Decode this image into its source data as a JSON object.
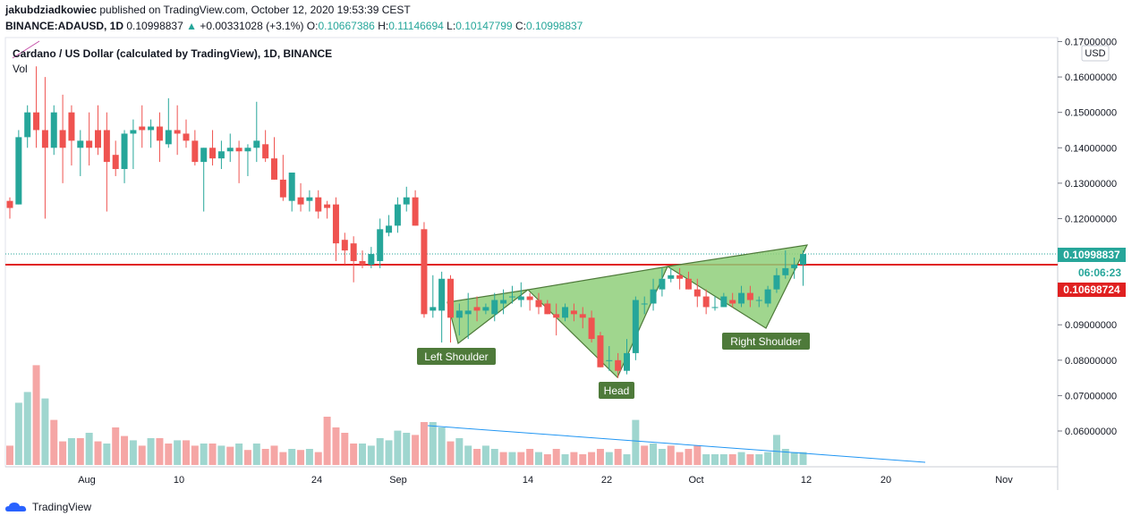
{
  "header": {
    "author": "jakubdziadkowiec",
    "published_text": "published on TradingView.com, October 12, 2020 19:53:39 CEST",
    "symbol": "BINANCE:ADAUSD, 1D",
    "last": "0.10998837",
    "change": "+0.00331028 (+3.1%)",
    "open_label": "O:",
    "open": "0.10667386",
    "high_label": "H:",
    "high": "0.11146694",
    "low_label": "L:",
    "low": "0.10147799",
    "close_label": "C:",
    "close": "0.10998837"
  },
  "chart_title": "Cardano / US Dollar (calculated by TradingView), 1D, BINANCE",
  "vol_label": "Vol",
  "currency_badge": "USD",
  "price_tags": {
    "last": "0.10998837",
    "countdown": "06:06:23",
    "support": "0.10698724"
  },
  "footer_brand": "TradingView",
  "colors": {
    "up": "#26a69a",
    "down": "#ef5350",
    "support_line": "#e02020",
    "pattern_fill": "#8fcf7a",
    "pattern_stroke": "#4e7a3a",
    "label_bg": "#4e7a3a",
    "trend_line": "#2196f3"
  },
  "chart_data": {
    "type": "candlestick",
    "ylim": [
      0.05,
      0.17
    ],
    "y_ticks": [
      "0.17000000",
      "0.16000000",
      "0.15000000",
      "0.14000000",
      "0.13000000",
      "0.12000000",
      "0.11000000",
      "0.10000000",
      "0.09000000",
      "0.08000000",
      "0.07000000",
      "0.06000000"
    ],
    "x_ticks": [
      "Aug",
      "10",
      "24",
      "Sep",
      "14",
      "22",
      "Oct",
      "12",
      "20",
      "Nov"
    ],
    "annotations": {
      "left_shoulder": "Left Shoulder",
      "head": "Head",
      "right_shoulder": "Right Shoulder"
    },
    "support_level": 0.10698724,
    "candles": [
      {
        "o": 0.125,
        "h": 0.126,
        "l": 0.12,
        "c": 0.123
      },
      {
        "o": 0.124,
        "h": 0.145,
        "l": 0.124,
        "c": 0.143
      },
      {
        "o": 0.143,
        "h": 0.152,
        "l": 0.14,
        "c": 0.15
      },
      {
        "o": 0.15,
        "h": 0.163,
        "l": 0.14,
        "c": 0.145
      },
      {
        "o": 0.145,
        "h": 0.16,
        "l": 0.12,
        "c": 0.14
      },
      {
        "o": 0.14,
        "h": 0.152,
        "l": 0.138,
        "c": 0.15
      },
      {
        "o": 0.145,
        "h": 0.155,
        "l": 0.13,
        "c": 0.14
      },
      {
        "o": 0.15,
        "h": 0.152,
        "l": 0.135,
        "c": 0.142
      },
      {
        "o": 0.14,
        "h": 0.145,
        "l": 0.132,
        "c": 0.142
      },
      {
        "o": 0.142,
        "h": 0.15,
        "l": 0.135,
        "c": 0.14
      },
      {
        "o": 0.145,
        "h": 0.152,
        "l": 0.138,
        "c": 0.14
      },
      {
        "o": 0.145,
        "h": 0.15,
        "l": 0.122,
        "c": 0.136
      },
      {
        "o": 0.138,
        "h": 0.142,
        "l": 0.132,
        "c": 0.134
      },
      {
        "o": 0.134,
        "h": 0.145,
        "l": 0.13,
        "c": 0.144
      },
      {
        "o": 0.144,
        "h": 0.148,
        "l": 0.134,
        "c": 0.145
      },
      {
        "o": 0.146,
        "h": 0.152,
        "l": 0.14,
        "c": 0.145
      },
      {
        "o": 0.145,
        "h": 0.148,
        "l": 0.14,
        "c": 0.146
      },
      {
        "o": 0.146,
        "h": 0.15,
        "l": 0.136,
        "c": 0.142
      },
      {
        "o": 0.141,
        "h": 0.154,
        "l": 0.14,
        "c": 0.145
      },
      {
        "o": 0.145,
        "h": 0.152,
        "l": 0.138,
        "c": 0.144
      },
      {
        "o": 0.144,
        "h": 0.148,
        "l": 0.14,
        "c": 0.142
      },
      {
        "o": 0.142,
        "h": 0.145,
        "l": 0.135,
        "c": 0.136
      },
      {
        "o": 0.136,
        "h": 0.14,
        "l": 0.122,
        "c": 0.14
      },
      {
        "o": 0.14,
        "h": 0.145,
        "l": 0.135,
        "c": 0.137
      },
      {
        "o": 0.137,
        "h": 0.142,
        "l": 0.134,
        "c": 0.139
      },
      {
        "o": 0.139,
        "h": 0.144,
        "l": 0.136,
        "c": 0.14
      },
      {
        "o": 0.14,
        "h": 0.142,
        "l": 0.13,
        "c": 0.139
      },
      {
        "o": 0.139,
        "h": 0.141,
        "l": 0.132,
        "c": 0.14
      },
      {
        "o": 0.14,
        "h": 0.153,
        "l": 0.136,
        "c": 0.142
      },
      {
        "o": 0.141,
        "h": 0.145,
        "l": 0.136,
        "c": 0.137
      },
      {
        "o": 0.137,
        "h": 0.143,
        "l": 0.131,
        "c": 0.131
      },
      {
        "o": 0.131,
        "h": 0.138,
        "l": 0.125,
        "c": 0.126
      },
      {
        "o": 0.125,
        "h": 0.133,
        "l": 0.122,
        "c": 0.133
      },
      {
        "o": 0.126,
        "h": 0.13,
        "l": 0.122,
        "c": 0.124
      },
      {
        "o": 0.125,
        "h": 0.128,
        "l": 0.122,
        "c": 0.126
      },
      {
        "o": 0.126,
        "h": 0.128,
        "l": 0.12,
        "c": 0.122
      },
      {
        "o": 0.124,
        "h": 0.125,
        "l": 0.12,
        "c": 0.123
      },
      {
        "o": 0.124,
        "h": 0.126,
        "l": 0.108,
        "c": 0.113
      },
      {
        "o": 0.114,
        "h": 0.116,
        "l": 0.107,
        "c": 0.111
      },
      {
        "o": 0.113,
        "h": 0.115,
        "l": 0.102,
        "c": 0.108
      },
      {
        "o": 0.108,
        "h": 0.111,
        "l": 0.106,
        "c": 0.107
      },
      {
        "o": 0.107,
        "h": 0.112,
        "l": 0.106,
        "c": 0.11
      },
      {
        "o": 0.108,
        "h": 0.12,
        "l": 0.106,
        "c": 0.117
      },
      {
        "o": 0.116,
        "h": 0.121,
        "l": 0.115,
        "c": 0.118
      },
      {
        "o": 0.118,
        "h": 0.126,
        "l": 0.116,
        "c": 0.124
      },
      {
        "o": 0.124,
        "h": 0.129,
        "l": 0.122,
        "c": 0.126
      },
      {
        "o": 0.126,
        "h": 0.128,
        "l": 0.118,
        "c": 0.118
      },
      {
        "o": 0.117,
        "h": 0.119,
        "l": 0.092,
        "c": 0.093
      },
      {
        "o": 0.094,
        "h": 0.104,
        "l": 0.092,
        "c": 0.095
      },
      {
        "o": 0.094,
        "h": 0.105,
        "l": 0.085,
        "c": 0.103
      },
      {
        "o": 0.103,
        "h": 0.104,
        "l": 0.085,
        "c": 0.092
      },
      {
        "o": 0.092,
        "h": 0.096,
        "l": 0.087,
        "c": 0.094
      },
      {
        "o": 0.093,
        "h": 0.099,
        "l": 0.086,
        "c": 0.094
      },
      {
        "o": 0.095,
        "h": 0.098,
        "l": 0.091,
        "c": 0.094
      },
      {
        "o": 0.094,
        "h": 0.096,
        "l": 0.093,
        "c": 0.095
      },
      {
        "o": 0.093,
        "h": 0.099,
        "l": 0.091,
        "c": 0.097
      },
      {
        "o": 0.096,
        "h": 0.1,
        "l": 0.093,
        "c": 0.097
      },
      {
        "o": 0.098,
        "h": 0.101,
        "l": 0.096,
        "c": 0.098
      },
      {
        "o": 0.097,
        "h": 0.102,
        "l": 0.095,
        "c": 0.098
      },
      {
        "o": 0.098,
        "h": 0.099,
        "l": 0.094,
        "c": 0.097
      },
      {
        "o": 0.097,
        "h": 0.099,
        "l": 0.093,
        "c": 0.095
      },
      {
        "o": 0.096,
        "h": 0.097,
        "l": 0.093,
        "c": 0.093
      },
      {
        "o": 0.093,
        "h": 0.096,
        "l": 0.087,
        "c": 0.092
      },
      {
        "o": 0.092,
        "h": 0.096,
        "l": 0.091,
        "c": 0.095
      },
      {
        "o": 0.094,
        "h": 0.096,
        "l": 0.091,
        "c": 0.093
      },
      {
        "o": 0.093,
        "h": 0.095,
        "l": 0.089,
        "c": 0.092
      },
      {
        "o": 0.092,
        "h": 0.094,
        "l": 0.085,
        "c": 0.086
      },
      {
        "o": 0.087,
        "h": 0.088,
        "l": 0.078,
        "c": 0.078
      },
      {
        "o": 0.08,
        "h": 0.084,
        "l": 0.077,
        "c": 0.08
      },
      {
        "o": 0.08,
        "h": 0.082,
        "l": 0.075,
        "c": 0.077
      },
      {
        "o": 0.077,
        "h": 0.086,
        "l": 0.076,
        "c": 0.082
      },
      {
        "o": 0.082,
        "h": 0.098,
        "l": 0.08,
        "c": 0.097
      },
      {
        "o": 0.096,
        "h": 0.098,
        "l": 0.093,
        "c": 0.096
      },
      {
        "o": 0.096,
        "h": 0.103,
        "l": 0.094,
        "c": 0.1
      },
      {
        "o": 0.1,
        "h": 0.106,
        "l": 0.098,
        "c": 0.103
      },
      {
        "o": 0.103,
        "h": 0.106,
        "l": 0.102,
        "c": 0.104
      },
      {
        "o": 0.104,
        "h": 0.106,
        "l": 0.1,
        "c": 0.103
      },
      {
        "o": 0.103,
        "h": 0.105,
        "l": 0.1,
        "c": 0.1
      },
      {
        "o": 0.1,
        "h": 0.103,
        "l": 0.095,
        "c": 0.098
      },
      {
        "o": 0.098,
        "h": 0.1,
        "l": 0.093,
        "c": 0.095
      },
      {
        "o": 0.095,
        "h": 0.098,
        "l": 0.094,
        "c": 0.095
      },
      {
        "o": 0.095,
        "h": 0.099,
        "l": 0.095,
        "c": 0.098
      },
      {
        "o": 0.097,
        "h": 0.099,
        "l": 0.095,
        "c": 0.096
      },
      {
        "o": 0.096,
        "h": 0.101,
        "l": 0.095,
        "c": 0.099
      },
      {
        "o": 0.099,
        "h": 0.101,
        "l": 0.095,
        "c": 0.097
      },
      {
        "o": 0.097,
        "h": 0.098,
        "l": 0.095,
        "c": 0.097
      },
      {
        "o": 0.096,
        "h": 0.101,
        "l": 0.095,
        "c": 0.1
      },
      {
        "o": 0.1,
        "h": 0.106,
        "l": 0.099,
        "c": 0.104
      },
      {
        "o": 0.104,
        "h": 0.111,
        "l": 0.103,
        "c": 0.106
      },
      {
        "o": 0.106,
        "h": 0.109,
        "l": 0.103,
        "c": 0.107
      },
      {
        "o": 0.107,
        "h": 0.111,
        "l": 0.101,
        "c": 0.11
      }
    ],
    "volume": [
      {
        "v": 0.18,
        "up": false
      },
      {
        "v": 0.58,
        "up": true
      },
      {
        "v": 0.68,
        "up": true
      },
      {
        "v": 0.93,
        "up": false
      },
      {
        "v": 0.62,
        "up": true
      },
      {
        "v": 0.42,
        "up": false
      },
      {
        "v": 0.22,
        "up": false
      },
      {
        "v": 0.25,
        "up": true
      },
      {
        "v": 0.25,
        "up": false
      },
      {
        "v": 0.3,
        "up": true
      },
      {
        "v": 0.22,
        "up": false
      },
      {
        "v": 0.2,
        "up": true
      },
      {
        "v": 0.35,
        "up": false
      },
      {
        "v": 0.27,
        "up": false
      },
      {
        "v": 0.23,
        "up": true
      },
      {
        "v": 0.18,
        "up": false
      },
      {
        "v": 0.25,
        "up": true
      },
      {
        "v": 0.25,
        "up": false
      },
      {
        "v": 0.2,
        "up": false
      },
      {
        "v": 0.23,
        "up": true
      },
      {
        "v": 0.23,
        "up": false
      },
      {
        "v": 0.18,
        "up": false
      },
      {
        "v": 0.2,
        "up": true
      },
      {
        "v": 0.2,
        "up": false
      },
      {
        "v": 0.18,
        "up": true
      },
      {
        "v": 0.17,
        "up": false
      },
      {
        "v": 0.2,
        "up": true
      },
      {
        "v": 0.14,
        "up": false
      },
      {
        "v": 0.2,
        "up": true
      },
      {
        "v": 0.15,
        "up": false
      },
      {
        "v": 0.18,
        "up": false
      },
      {
        "v": 0.12,
        "up": false
      },
      {
        "v": 0.15,
        "up": true
      },
      {
        "v": 0.14,
        "up": false
      },
      {
        "v": 0.15,
        "up": true
      },
      {
        "v": 0.12,
        "up": false
      },
      {
        "v": 0.45,
        "up": false
      },
      {
        "v": 0.35,
        "up": false
      },
      {
        "v": 0.3,
        "up": false
      },
      {
        "v": 0.2,
        "up": false
      },
      {
        "v": 0.2,
        "up": true
      },
      {
        "v": 0.18,
        "up": true
      },
      {
        "v": 0.25,
        "up": true
      },
      {
        "v": 0.23,
        "up": true
      },
      {
        "v": 0.32,
        "up": true
      },
      {
        "v": 0.3,
        "up": true
      },
      {
        "v": 0.28,
        "up": false
      },
      {
        "v": 0.4,
        "up": false
      },
      {
        "v": 0.4,
        "up": true
      },
      {
        "v": 0.35,
        "up": true
      },
      {
        "v": 0.22,
        "up": false
      },
      {
        "v": 0.25,
        "up": true
      },
      {
        "v": 0.18,
        "up": true
      },
      {
        "v": 0.15,
        "up": false
      },
      {
        "v": 0.18,
        "up": true
      },
      {
        "v": 0.15,
        "up": true
      },
      {
        "v": 0.12,
        "up": false
      },
      {
        "v": 0.12,
        "up": true
      },
      {
        "v": 0.12,
        "up": false
      },
      {
        "v": 0.15,
        "up": false
      },
      {
        "v": 0.12,
        "up": true
      },
      {
        "v": 0.1,
        "up": false
      },
      {
        "v": 0.15,
        "up": false
      },
      {
        "v": 0.1,
        "up": true
      },
      {
        "v": 0.12,
        "up": false
      },
      {
        "v": 0.1,
        "up": false
      },
      {
        "v": 0.12,
        "up": false
      },
      {
        "v": 0.15,
        "up": false
      },
      {
        "v": 0.12,
        "up": true
      },
      {
        "v": 0.15,
        "up": false
      },
      {
        "v": 0.1,
        "up": true
      },
      {
        "v": 0.42,
        "up": true
      },
      {
        "v": 0.18,
        "up": false
      },
      {
        "v": 0.2,
        "up": true
      },
      {
        "v": 0.15,
        "up": true
      },
      {
        "v": 0.18,
        "up": false
      },
      {
        "v": 0.12,
        "up": false
      },
      {
        "v": 0.15,
        "up": false
      },
      {
        "v": 0.18,
        "up": false
      },
      {
        "v": 0.1,
        "up": true
      },
      {
        "v": 0.1,
        "up": true
      },
      {
        "v": 0.1,
        "up": true
      },
      {
        "v": 0.1,
        "up": false
      },
      {
        "v": 0.12,
        "up": true
      },
      {
        "v": 0.1,
        "up": false
      },
      {
        "v": 0.1,
        "up": true
      },
      {
        "v": 0.12,
        "up": true
      },
      {
        "v": 0.28,
        "up": true
      },
      {
        "v": 0.15,
        "up": true
      },
      {
        "v": 0.12,
        "up": true
      },
      {
        "v": 0.12,
        "up": true
      }
    ]
  }
}
